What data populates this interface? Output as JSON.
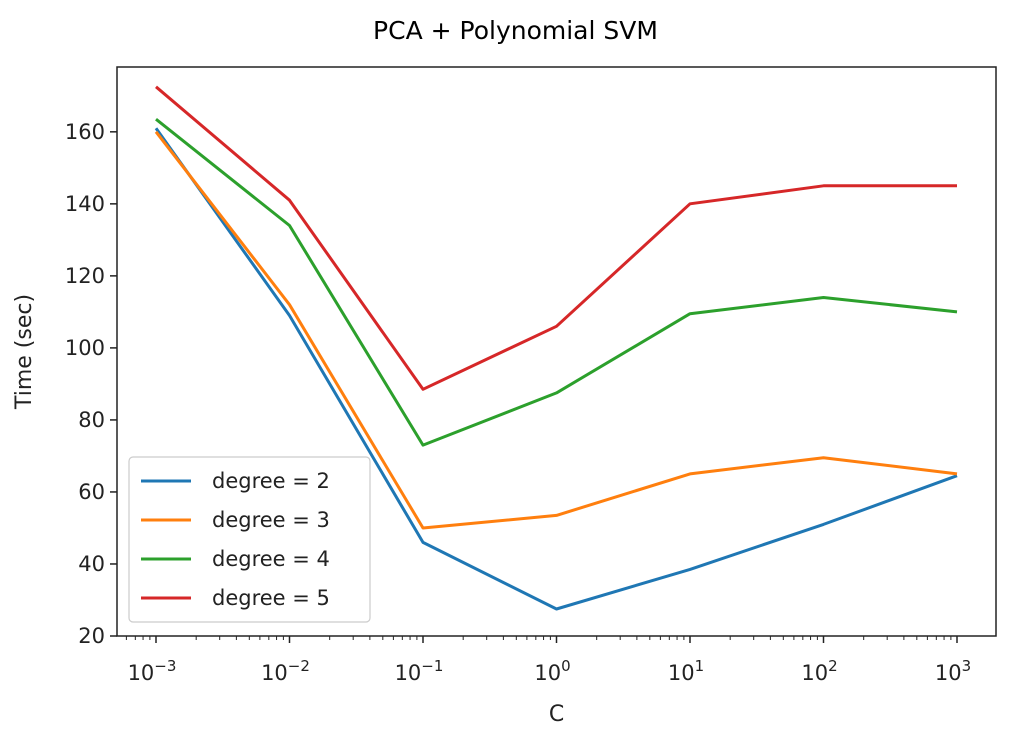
{
  "chart_data": {
    "type": "line",
    "title": "PCA + Polynomial SVM",
    "xlabel": "C",
    "ylabel": "Time (sec)",
    "xscale": "log",
    "x": [
      0.001,
      0.01,
      0.1,
      1,
      10,
      100,
      1000
    ],
    "x_tick_labels": [
      {
        "base": "10",
        "exp": "−3"
      },
      {
        "base": "10",
        "exp": "−2"
      },
      {
        "base": "10",
        "exp": "−1"
      },
      {
        "base": "10",
        "exp": "0"
      },
      {
        "base": "10",
        "exp": "1"
      },
      {
        "base": "10",
        "exp": "2"
      },
      {
        "base": "10",
        "exp": "3"
      }
    ],
    "yticks": [
      20,
      40,
      60,
      80,
      100,
      120,
      140,
      160
    ],
    "ylim": [
      20,
      178
    ],
    "grid": false,
    "legend_position": "lower-left",
    "series": [
      {
        "name": "degree = 2",
        "color": "#1f77b4",
        "values": [
          161,
          109,
          46,
          27.5,
          38.5,
          51,
          64.5
        ]
      },
      {
        "name": "degree = 3",
        "color": "#ff7f0e",
        "values": [
          160,
          112,
          50,
          53.5,
          65,
          69.5,
          65
        ]
      },
      {
        "name": "degree = 4",
        "color": "#2ca02c",
        "values": [
          163.5,
          134,
          73,
          87.5,
          109.5,
          114,
          110
        ]
      },
      {
        "name": "degree = 5",
        "color": "#d62728",
        "values": [
          172.5,
          141,
          88.5,
          106,
          140,
          145,
          145
        ]
      }
    ]
  }
}
